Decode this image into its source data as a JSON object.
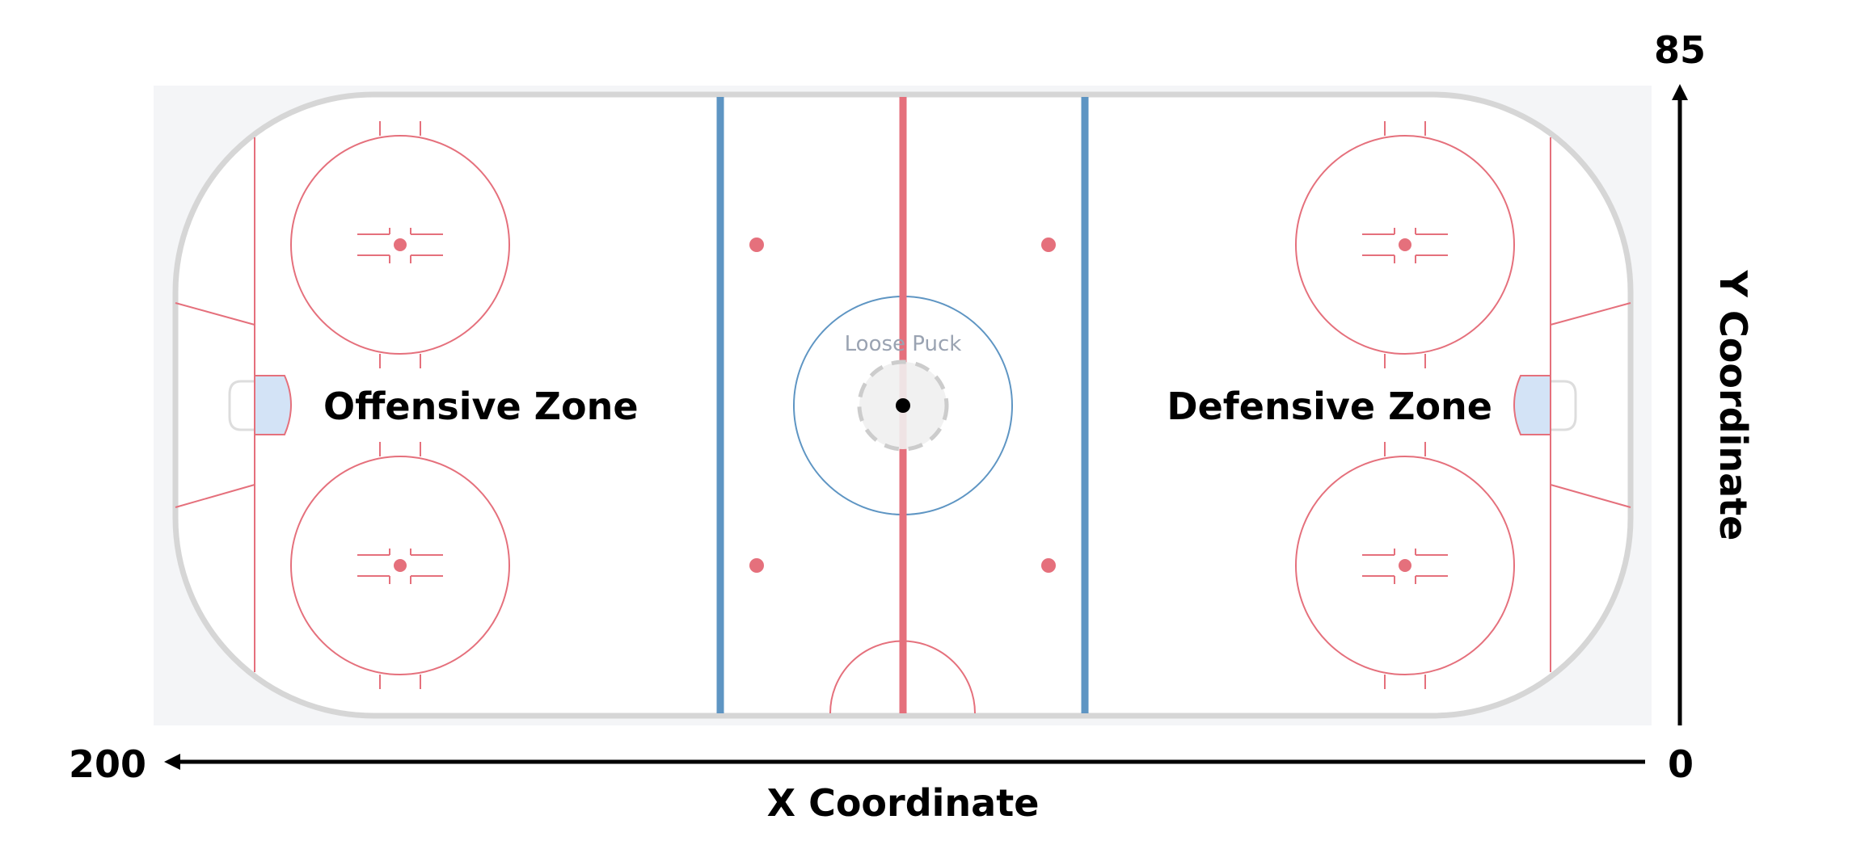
{
  "rink": {
    "background_color": "#f4f5f7",
    "ice_color": "#ffffff",
    "board_color": "#d6d6d6",
    "red_color": "#e5707c",
    "blue_color": "#5e95c3",
    "crease_color": "#d3e3f6"
  },
  "zones": {
    "offensive_label": "Offensive Zone",
    "defensive_label": "Defensive Zone"
  },
  "puck": {
    "label": "Loose Puck",
    "x": 100,
    "y": 42.5,
    "color": "#000000"
  },
  "axes": {
    "x_label": "X Coordinate",
    "y_label": "Y Coordinate",
    "x_left_value": "200",
    "x_right_value": "0",
    "y_top_value": "85"
  }
}
